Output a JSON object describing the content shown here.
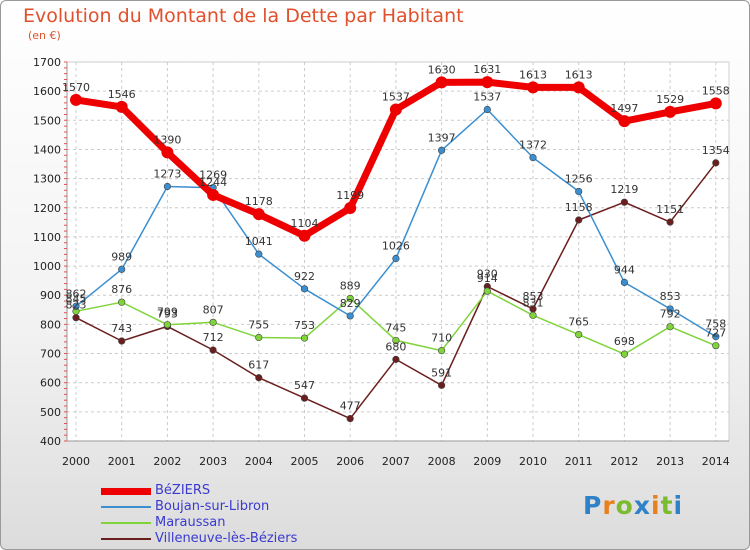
{
  "header": {
    "title": "Evolution du Montant de la Dette par Habitant",
    "unit": "(en €)"
  },
  "logo": {
    "letters": [
      "P",
      "r",
      "o",
      "x",
      "i",
      "t",
      "i"
    ],
    "colors": [
      "#2f82c8",
      "#e8801e",
      "#7cbb2e",
      "#2f82c8",
      "#e8801e",
      "#7cbb2e",
      "#2f82c8"
    ]
  },
  "chart_data": {
    "type": "line",
    "title": "Evolution du Montant de la Dette par Habitant",
    "ylabel": "(en €)",
    "xlabel": "",
    "x": [
      "2000",
      "2001",
      "2002",
      "2003",
      "2004",
      "2005",
      "2006",
      "2007",
      "2008",
      "2009",
      "2010",
      "2011",
      "2012",
      "2013",
      "2014"
    ],
    "ylim": [
      400,
      1700
    ],
    "yticks": [
      400,
      500,
      600,
      700,
      800,
      900,
      1000,
      1100,
      1200,
      1300,
      1400,
      1500,
      1600,
      1700
    ],
    "grid": true,
    "legend": "bottom-left",
    "series": [
      {
        "name": "Villeneuve-lès-Béziers",
        "color": "#6b1e1e",
        "values": [
          823,
          743,
          793,
          712,
          617,
          547,
          477,
          680,
          591,
          930,
          853,
          1158,
          1219,
          1151,
          1354
        ]
      },
      {
        "name": "Maraussan",
        "color": "#7fd43a",
        "values": [
          845,
          876,
          799,
          807,
          755,
          753,
          889,
          745,
          710,
          914,
          831,
          765,
          698,
          792,
          727
        ]
      },
      {
        "name": "Boujan-sur-Libron",
        "color": "#3b8fd0",
        "values": [
          862,
          989,
          1273,
          1269,
          1041,
          922,
          829,
          1026,
          1397,
          1537,
          1372,
          1256,
          944,
          853,
          758
        ]
      },
      {
        "name": "BéZIERS",
        "color": "#ee0000",
        "values": [
          1570,
          1546,
          1390,
          1244,
          1178,
          1104,
          1199,
          1537,
          1630,
          1631,
          1613,
          1613,
          1497,
          1529,
          1558
        ]
      }
    ]
  }
}
